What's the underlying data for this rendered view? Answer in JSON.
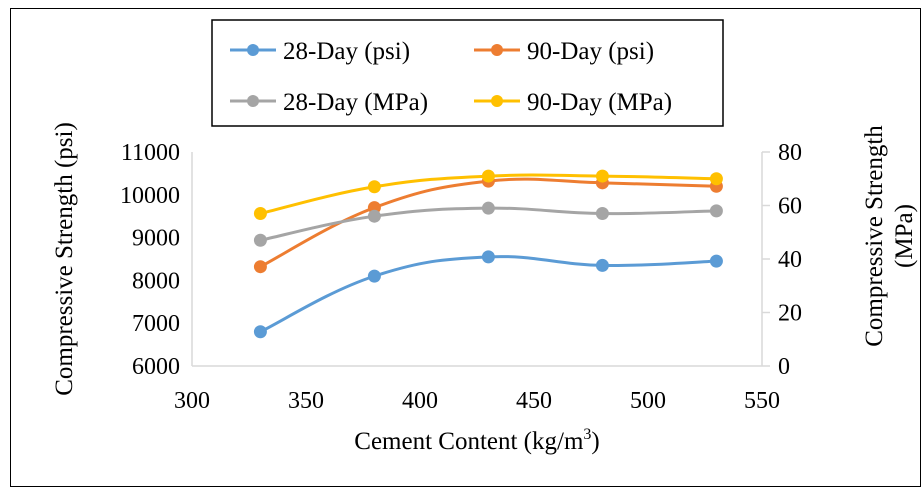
{
  "chart_data": {
    "type": "line",
    "x": [
      330,
      380,
      430,
      480,
      530
    ],
    "series": [
      {
        "name": "28-Day (psi)",
        "axis": "left",
        "color": "#5B9BD5",
        "values": [
          6800,
          8100,
          8550,
          8350,
          8450
        ]
      },
      {
        "name": "90-Day (psi)",
        "axis": "left",
        "color": "#ED7D31",
        "values": [
          8320,
          9700,
          10320,
          10280,
          10200
        ]
      },
      {
        "name": "28-Day (MPa)",
        "axis": "right",
        "color": "#A5A5A5",
        "values": [
          47,
          56,
          59,
          57,
          58
        ]
      },
      {
        "name": "90-Day (MPa)",
        "axis": "right",
        "color": "#FFC000",
        "values": [
          57,
          67,
          71,
          71,
          70
        ]
      }
    ],
    "xlabel": "Cement Content (kg/m",
    "xlabel_sup": "3",
    "xlabel_end": ")",
    "ylabel_left": "Compressive Strength (psi)",
    "ylabel_right_line1": "Compressive Strength",
    "ylabel_right_line2": "(MPa)",
    "xlim": [
      300,
      550
    ],
    "ylim_left": [
      6000,
      11000
    ],
    "ylim_right": [
      0,
      80
    ],
    "x_ticks": [
      "300",
      "350",
      "400",
      "450",
      "500",
      "550"
    ],
    "y_left_ticks": [
      "6000",
      "7000",
      "8000",
      "9000",
      "10000",
      "11000"
    ],
    "y_right_ticks": [
      "0",
      "20",
      "40",
      "60",
      "80"
    ],
    "legend_position": "top",
    "grid": false
  }
}
